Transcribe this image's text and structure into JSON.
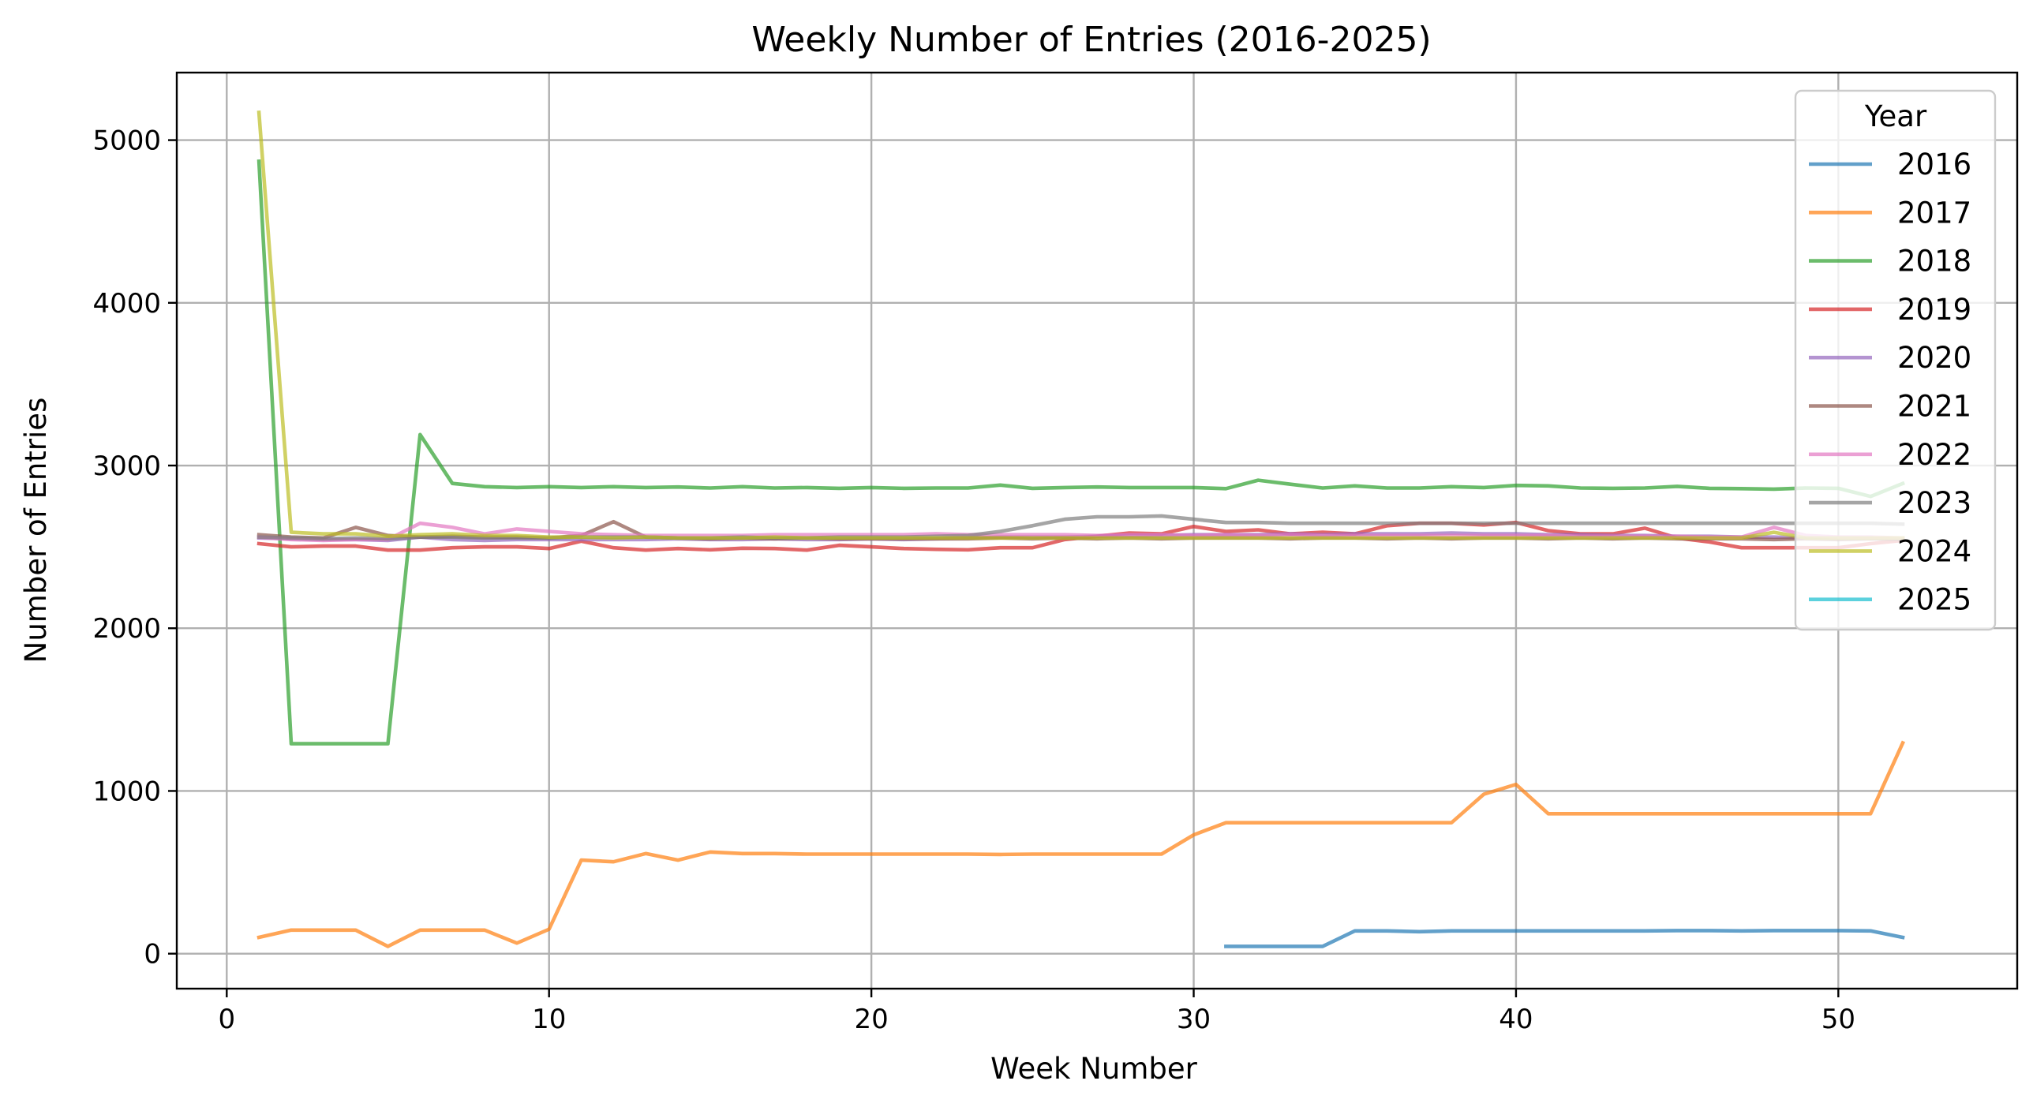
{
  "chart_data": {
    "type": "line",
    "title": "Weekly Number of Entries (2016-2025)",
    "xlabel": "Week Number",
    "ylabel": "Number of Entries",
    "xlim": [
      -1.55,
      55.55
    ],
    "ylim": [
      -215,
      5415
    ],
    "xticks": [
      0,
      10,
      20,
      30,
      40,
      50
    ],
    "yticks": [
      0,
      1000,
      2000,
      3000,
      4000,
      5000
    ],
    "grid": true,
    "legend": {
      "title": "Year",
      "placement": "top-right"
    },
    "series": [
      {
        "name": "2016",
        "color": "#1f77b4",
        "x": [
          31,
          32,
          33,
          34,
          35,
          36,
          37,
          38,
          39,
          40,
          41,
          42,
          43,
          44,
          45,
          46,
          47,
          48,
          49,
          50,
          51,
          52
        ],
        "values": [
          45,
          45,
          45,
          45,
          140,
          140,
          135,
          140,
          140,
          140,
          140,
          140,
          140,
          140,
          142,
          142,
          140,
          142,
          142,
          142,
          140,
          100
        ]
      },
      {
        "name": "2017",
        "color": "#ff7f0e",
        "x": [
          1,
          2,
          3,
          4,
          5,
          6,
          7,
          8,
          9,
          10,
          11,
          12,
          13,
          14,
          15,
          16,
          17,
          18,
          19,
          20,
          21,
          22,
          23,
          24,
          25,
          26,
          27,
          28,
          29,
          30,
          31,
          32,
          33,
          34,
          35,
          36,
          37,
          38,
          39,
          40,
          41,
          42,
          43,
          44,
          45,
          46,
          47,
          48,
          49,
          50,
          51,
          52
        ],
        "values": [
          100,
          145,
          145,
          145,
          45,
          145,
          145,
          145,
          65,
          150,
          575,
          565,
          615,
          575,
          625,
          615,
          615,
          612,
          612,
          612,
          612,
          612,
          612,
          610,
          612,
          612,
          612,
          612,
          612,
          730,
          805,
          805,
          805,
          805,
          805,
          805,
          805,
          805,
          980,
          1040,
          860,
          860,
          860,
          860,
          860,
          860,
          860,
          860,
          860,
          860,
          860,
          1295
        ]
      },
      {
        "name": "2018",
        "color": "#2ca02c",
        "x": [
          1,
          2,
          3,
          4,
          5,
          6,
          7,
          8,
          9,
          10,
          11,
          12,
          13,
          14,
          15,
          16,
          17,
          18,
          19,
          20,
          21,
          22,
          23,
          24,
          25,
          26,
          27,
          28,
          29,
          30,
          31,
          32,
          33,
          34,
          35,
          36,
          37,
          38,
          39,
          40,
          41,
          42,
          43,
          44,
          45,
          46,
          47,
          48,
          49,
          50,
          51,
          52
        ],
        "values": [
          4870,
          1290,
          1290,
          1290,
          1290,
          3190,
          2890,
          2870,
          2865,
          2870,
          2865,
          2870,
          2865,
          2868,
          2862,
          2870,
          2862,
          2865,
          2860,
          2865,
          2860,
          2862,
          2862,
          2880,
          2860,
          2865,
          2868,
          2865,
          2865,
          2865,
          2858,
          2910,
          2885,
          2862,
          2875,
          2862,
          2862,
          2870,
          2865,
          2878,
          2875,
          2862,
          2860,
          2862,
          2872,
          2860,
          2858,
          2855,
          2862,
          2860,
          2810,
          2890
        ]
      },
      {
        "name": "2019",
        "color": "#d62728",
        "x": [
          1,
          2,
          3,
          4,
          5,
          6,
          7,
          8,
          9,
          10,
          11,
          12,
          13,
          14,
          15,
          16,
          17,
          18,
          19,
          20,
          21,
          22,
          23,
          24,
          25,
          26,
          27,
          28,
          29,
          30,
          31,
          32,
          33,
          34,
          35,
          36,
          37,
          38,
          39,
          40,
          41,
          42,
          43,
          44,
          45,
          46,
          47,
          48,
          49,
          50,
          51,
          52
        ],
        "values": [
          2520,
          2500,
          2505,
          2505,
          2480,
          2480,
          2495,
          2500,
          2500,
          2490,
          2535,
          2495,
          2480,
          2490,
          2482,
          2492,
          2490,
          2480,
          2510,
          2500,
          2490,
          2485,
          2482,
          2495,
          2495,
          2545,
          2565,
          2585,
          2580,
          2625,
          2595,
          2605,
          2580,
          2590,
          2580,
          2630,
          2645,
          2645,
          2635,
          2650,
          2600,
          2580,
          2580,
          2615,
          2555,
          2530,
          2495,
          2495,
          2495,
          2495,
          2520,
          2540
        ]
      },
      {
        "name": "2020",
        "color": "#9467bd",
        "x": [
          1,
          2,
          3,
          4,
          5,
          6,
          7,
          8,
          9,
          10,
          11,
          12,
          13,
          14,
          15,
          16,
          17,
          18,
          19,
          20,
          21,
          22,
          23,
          24,
          25,
          26,
          27,
          28,
          29,
          30,
          31,
          32,
          33,
          34,
          35,
          36,
          37,
          38,
          39,
          40,
          41,
          42,
          43,
          44,
          45,
          46,
          47,
          48,
          49,
          50,
          51,
          52
        ],
        "values": [
          2555,
          2550,
          2545,
          2545,
          2540,
          2560,
          2545,
          2540,
          2545,
          2545,
          2545,
          2545,
          2545,
          2550,
          2545,
          2545,
          2550,
          2545,
          2545,
          2550,
          2545,
          2550,
          2555,
          2560,
          2560,
          2560,
          2565,
          2570,
          2570,
          2575,
          2575,
          2575,
          2580,
          2575,
          2580,
          2580,
          2580,
          2585,
          2580,
          2580,
          2575,
          2575,
          2570,
          2570,
          2565,
          2565,
          2560,
          2560,
          2555,
          2555,
          2555,
          2550
        ]
      },
      {
        "name": "2021",
        "color": "#8c564b",
        "x": [
          1,
          2,
          3,
          4,
          5,
          6,
          7,
          8,
          9,
          10,
          11,
          12,
          13,
          14,
          15,
          16,
          17,
          18,
          19,
          20,
          21,
          22,
          23,
          24,
          25,
          26,
          27,
          28,
          29,
          30,
          31,
          32,
          33,
          34,
          35,
          36,
          37,
          38,
          39,
          40,
          41,
          42,
          43,
          44,
          45,
          46,
          47,
          48,
          49,
          50,
          51,
          52
        ],
        "values": [
          2575,
          2560,
          2555,
          2620,
          2570,
          2560,
          2565,
          2560,
          2560,
          2555,
          2570,
          2655,
          2560,
          2555,
          2550,
          2555,
          2550,
          2555,
          2550,
          2550,
          2550,
          2550,
          2550,
          2555,
          2550,
          2555,
          2550,
          2555,
          2550,
          2555,
          2555,
          2555,
          2550,
          2555,
          2555,
          2550,
          2555,
          2550,
          2555,
          2555,
          2550,
          2555,
          2550,
          2555,
          2550,
          2550,
          2550,
          2545,
          2550,
          2545,
          2550,
          2545
        ]
      },
      {
        "name": "2022",
        "color": "#e377c2",
        "x": [
          1,
          2,
          3,
          4,
          5,
          6,
          7,
          8,
          9,
          10,
          11,
          12,
          13,
          14,
          15,
          16,
          17,
          18,
          19,
          20,
          21,
          22,
          23,
          24,
          25,
          26,
          27,
          28,
          29,
          30,
          31,
          32,
          33,
          34,
          35,
          36,
          37,
          38,
          39,
          40,
          41,
          42,
          43,
          44,
          45,
          46,
          47,
          48,
          49,
          50,
          51,
          52
        ],
        "values": [
          2560,
          2545,
          2540,
          2545,
          2545,
          2645,
          2620,
          2580,
          2610,
          2595,
          2580,
          2575,
          2570,
          2570,
          2570,
          2570,
          2575,
          2575,
          2575,
          2575,
          2575,
          2580,
          2575,
          2575,
          2575,
          2575,
          2570,
          2575,
          2575,
          2570,
          2575,
          2570,
          2575,
          2570,
          2570,
          2570,
          2570,
          2570,
          2570,
          2570,
          2570,
          2565,
          2565,
          2565,
          2565,
          2560,
          2560,
          2620,
          2570,
          2560,
          2560,
          2555
        ]
      },
      {
        "name": "2023",
        "color": "#7f7f7f",
        "x": [
          1,
          2,
          3,
          4,
          5,
          6,
          7,
          8,
          9,
          10,
          11,
          12,
          13,
          14,
          15,
          16,
          17,
          18,
          19,
          20,
          21,
          22,
          23,
          24,
          25,
          26,
          27,
          28,
          29,
          30,
          31,
          32,
          33,
          34,
          35,
          36,
          37,
          38,
          39,
          40,
          41,
          42,
          43,
          44,
          45,
          46,
          47,
          48,
          49,
          50,
          51,
          52
        ],
        "values": [
          2560,
          2555,
          2550,
          2555,
          2550,
          2560,
          2560,
          2555,
          2555,
          2555,
          2560,
          2560,
          2560,
          2555,
          2555,
          2560,
          2555,
          2555,
          2560,
          2560,
          2560,
          2565,
          2570,
          2595,
          2630,
          2670,
          2685,
          2685,
          2690,
          2670,
          2650,
          2650,
          2645,
          2645,
          2645,
          2645,
          2645,
          2645,
          2645,
          2645,
          2645,
          2645,
          2645,
          2645,
          2645,
          2645,
          2645,
          2645,
          2645,
          2645,
          2645,
          2640
        ]
      },
      {
        "name": "2024",
        "color": "#bcbd22",
        "x": [
          1,
          2,
          3,
          4,
          5,
          6,
          7,
          8,
          9,
          10,
          11,
          12,
          13,
          14,
          15,
          16,
          17,
          18,
          19,
          20,
          21,
          22,
          23,
          24,
          25,
          26,
          27,
          28,
          29,
          30,
          31,
          32,
          33,
          34,
          35,
          36,
          37,
          38,
          39,
          40,
          41,
          42,
          43,
          44,
          45,
          46,
          47,
          48,
          49,
          50,
          51,
          52
        ],
        "values": [
          5170,
          2590,
          2580,
          2580,
          2565,
          2575,
          2580,
          2570,
          2570,
          2560,
          2560,
          2555,
          2560,
          2555,
          2555,
          2555,
          2560,
          2555,
          2555,
          2555,
          2555,
          2555,
          2555,
          2555,
          2555,
          2555,
          2555,
          2555,
          2555,
          2555,
          2555,
          2555,
          2555,
          2555,
          2555,
          2555,
          2555,
          2555,
          2555,
          2555,
          2555,
          2555,
          2555,
          2555,
          2555,
          2555,
          2555,
          2590,
          2555,
          2555,
          2555,
          2555
        ]
      },
      {
        "name": "2025",
        "color": "#17becf",
        "x": [],
        "values": []
      }
    ]
  }
}
